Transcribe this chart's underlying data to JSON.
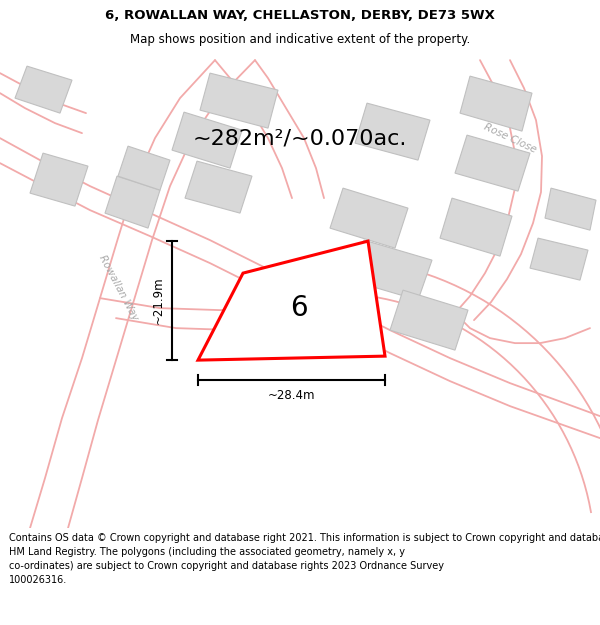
{
  "title_line1": "6, ROWALLAN WAY, CHELLASTON, DERBY, DE73 5WX",
  "title_line2": "Map shows position and indicative extent of the property.",
  "footer_text": "Contains OS data © Crown copyright and database right 2021. This information is subject to Crown copyright and database rights 2023 and is reproduced with the permission of\nHM Land Registry. The polygons (including the associated geometry, namely x, y\nco-ordinates) are subject to Crown copyright and database rights 2023 Ordnance Survey\n100026316.",
  "area_text": "~282m²/~0.070ac.",
  "label_number": "6",
  "dim_width": "~28.4m",
  "dim_height": "~21.9m",
  "road_label_rowallan": "Rowallan Way",
  "road_label_rose": "Rose Close",
  "background_color": "#f0efef",
  "building_color": "#d8d8d8",
  "road_line_color": "#f2aaaa",
  "subject_fill": "#ffffff",
  "subject_edge": "#ff0000",
  "title_bg": "#ffffff",
  "footer_bg": "#ffffff"
}
